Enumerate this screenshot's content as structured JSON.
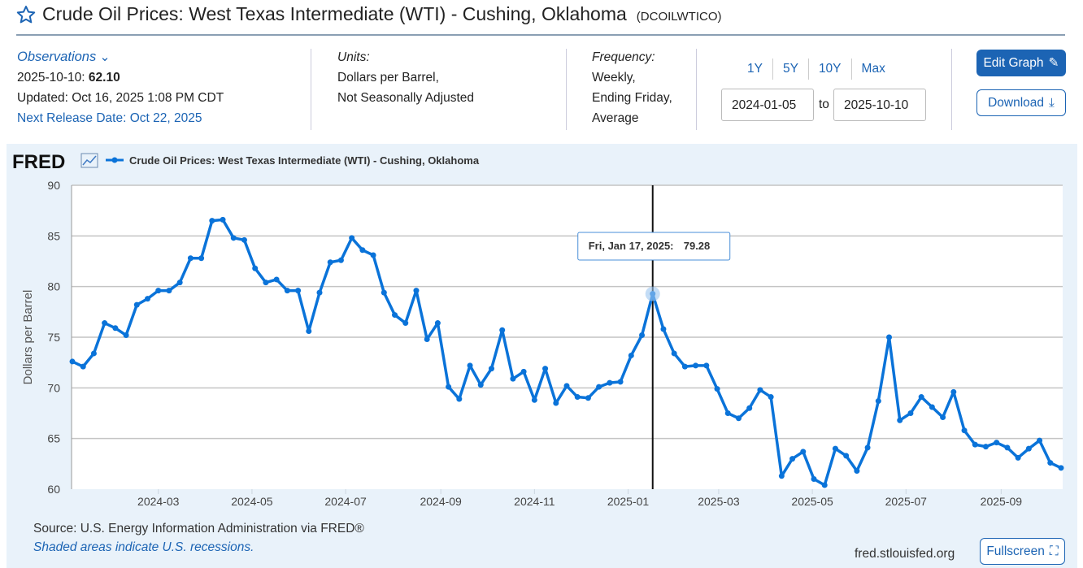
{
  "header": {
    "title": "Crude Oil Prices: West Texas Intermediate (WTI) - Cushing, Oklahoma",
    "series_id": "(DCOILWTICO)"
  },
  "observations": {
    "label": "Observations",
    "date": "2025-10-10:",
    "value": "62.10",
    "updated": "Updated: Oct 16, 2025 1:08 PM CDT",
    "next_release": "Next Release Date: Oct 22, 2025"
  },
  "units": {
    "label": "Units:",
    "line1": "Dollars per Barrel,",
    "line2": "Not Seasonally Adjusted"
  },
  "frequency": {
    "label": "Frequency:",
    "line1": "Weekly,",
    "line2": "Ending Friday,",
    "line3": "Average"
  },
  "ranges": [
    "1Y",
    "5Y",
    "10Y",
    "Max"
  ],
  "date_range": {
    "start": "2024-01-05",
    "sep": "to",
    "end": "2025-10-10"
  },
  "buttons": {
    "edit": "Edit Graph",
    "download": "Download",
    "fullscreen": "Fullscreen"
  },
  "footer": {
    "source": "Source: U.S. Energy Information Administration via FRED®",
    "shaded": "Shaded areas indicate U.S. recessions.",
    "site": "fred.stlouisfed.org"
  },
  "colors": {
    "line": "#0a73d9",
    "accent": "#1c64b4"
  },
  "chart_data": {
    "type": "line",
    "logo": "FRED",
    "legend": "Crude Oil Prices: West Texas Intermediate (WTI) - Cushing, Oklahoma",
    "ylabel": "Dollars per Barrel",
    "ylim": [
      60,
      90
    ],
    "yticks": [
      "60",
      "65",
      "70",
      "75",
      "80",
      "85",
      "90"
    ],
    "xticks": [
      "2024-03",
      "2024-05",
      "2024-07",
      "2024-09",
      "2024-11",
      "2025-01",
      "2025-03",
      "2025-05",
      "2025-07",
      "2025-09"
    ],
    "x_start": "2024-01-05",
    "x_end": "2025-10-10",
    "frequency_days": 7,
    "tooltip": {
      "label": "Fri, Jan 17, 2025:",
      "value": "79.28",
      "index": 54
    },
    "values": [
      72.6,
      72.1,
      73.4,
      76.4,
      75.9,
      75.2,
      78.2,
      78.8,
      79.6,
      79.6,
      80.4,
      82.8,
      82.8,
      86.5,
      86.6,
      84.8,
      84.6,
      81.8,
      80.4,
      80.7,
      79.6,
      79.6,
      75.6,
      79.4,
      82.4,
      82.6,
      84.8,
      83.6,
      83.1,
      79.4,
      77.2,
      76.4,
      79.6,
      74.8,
      76.4,
      70.1,
      68.9,
      72.2,
      70.3,
      71.9,
      75.7,
      70.9,
      71.6,
      68.8,
      71.9,
      68.5,
      70.2,
      69.1,
      69.0,
      70.1,
      70.5,
      70.6,
      73.2,
      75.2,
      79.28,
      75.8,
      73.4,
      72.1,
      72.2,
      72.2,
      69.9,
      67.5,
      67.0,
      68.0,
      69.8,
      69.1,
      61.3,
      63.0,
      63.7,
      61.0,
      60.4,
      64.0,
      63.3,
      61.8,
      64.1,
      68.7,
      75.0,
      66.8,
      67.5,
      69.1,
      68.1,
      67.1,
      69.6,
      65.8,
      64.4,
      64.2,
      64.6,
      64.1,
      63.1,
      64.0,
      64.8,
      62.6,
      62.1
    ]
  }
}
